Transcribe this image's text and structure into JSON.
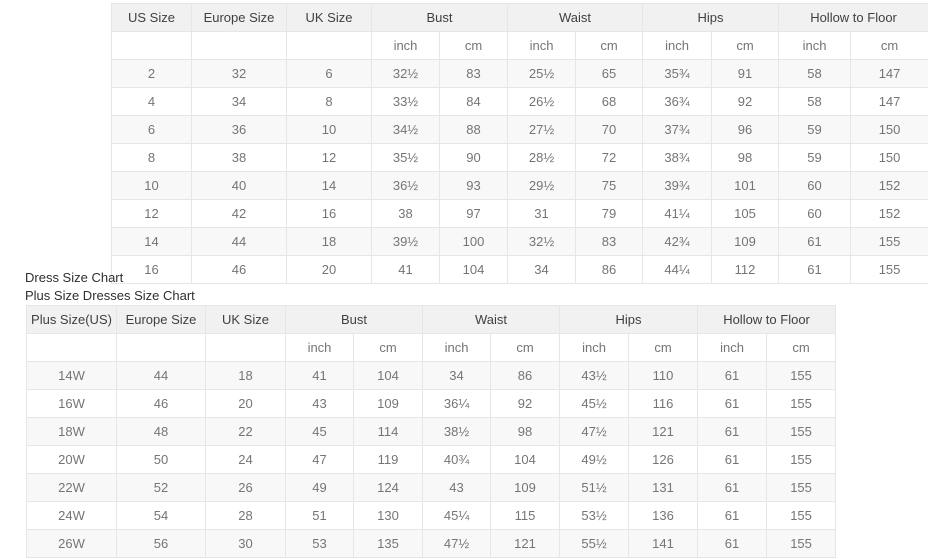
{
  "labels": {
    "dress_size_chart": "Dress Size Chart",
    "plus_size_chart": "Plus Size Dresses Size Chart"
  },
  "colors": {
    "header_bg": "#f1f1f1",
    "stripe_bg": "#f8f8f8",
    "border": "#e6e6e6",
    "header_text": "#404040",
    "cell_text": "#757575"
  },
  "standard_chart": {
    "columns": [
      {
        "label": "US Size",
        "span": 1
      },
      {
        "label": "Europe Size",
        "span": 1
      },
      {
        "label": "UK Size",
        "span": 1
      },
      {
        "label": "Bust",
        "span": 2
      },
      {
        "label": "Waist",
        "span": 2
      },
      {
        "label": "Hips",
        "span": 2
      },
      {
        "label": "Hollow to Floor",
        "span": 2
      }
    ],
    "unit_row": [
      "",
      "",
      "",
      "inch",
      "cm",
      "inch",
      "cm",
      "inch",
      "cm",
      "inch",
      "cm"
    ],
    "rows": [
      [
        "2",
        "32",
        "6",
        "32½",
        "83",
        "25½",
        "65",
        "35¾",
        "91",
        "58",
        "147"
      ],
      [
        "4",
        "34",
        "8",
        "33½",
        "84",
        "26½",
        "68",
        "36¾",
        "92",
        "58",
        "147"
      ],
      [
        "6",
        "36",
        "10",
        "34½",
        "88",
        "27½",
        "70",
        "37¾",
        "96",
        "59",
        "150"
      ],
      [
        "8",
        "38",
        "12",
        "35½",
        "90",
        "28½",
        "72",
        "38¾",
        "98",
        "59",
        "150"
      ],
      [
        "10",
        "40",
        "14",
        "36½",
        "93",
        "29½",
        "75",
        "39¾",
        "101",
        "60",
        "152"
      ],
      [
        "12",
        "42",
        "16",
        "38",
        "97",
        "31",
        "79",
        "41¼",
        "105",
        "60",
        "152"
      ],
      [
        "14",
        "44",
        "18",
        "39½",
        "100",
        "32½",
        "83",
        "42¾",
        "109",
        "61",
        "155"
      ],
      [
        "16",
        "46",
        "20",
        "41",
        "104",
        "34",
        "86",
        "44¼",
        "112",
        "61",
        "155"
      ]
    ]
  },
  "plus_chart": {
    "columns": [
      {
        "label": "Plus Size(US)",
        "span": 1
      },
      {
        "label": "Europe Size",
        "span": 1
      },
      {
        "label": "UK Size",
        "span": 1
      },
      {
        "label": "Bust",
        "span": 2
      },
      {
        "label": "Waist",
        "span": 2
      },
      {
        "label": "Hips",
        "span": 2
      },
      {
        "label": "Hollow to Floor",
        "span": 2
      }
    ],
    "unit_row": [
      "",
      "",
      "",
      "inch",
      "cm",
      "inch",
      "cm",
      "inch",
      "cm",
      "inch",
      "cm"
    ],
    "rows": [
      [
        "14W",
        "44",
        "18",
        "41",
        "104",
        "34",
        "86",
        "43½",
        "110",
        "61",
        "155"
      ],
      [
        "16W",
        "46",
        "20",
        "43",
        "109",
        "36¼",
        "92",
        "45½",
        "116",
        "61",
        "155"
      ],
      [
        "18W",
        "48",
        "22",
        "45",
        "114",
        "38½",
        "98",
        "47½",
        "121",
        "61",
        "155"
      ],
      [
        "20W",
        "50",
        "24",
        "47",
        "119",
        "40¾",
        "104",
        "49½",
        "126",
        "61",
        "155"
      ],
      [
        "22W",
        "52",
        "26",
        "49",
        "124",
        "43",
        "109",
        "51½",
        "131",
        "61",
        "155"
      ],
      [
        "24W",
        "54",
        "28",
        "51",
        "130",
        "45¼",
        "115",
        "53½",
        "136",
        "61",
        "155"
      ],
      [
        "26W",
        "56",
        "30",
        "53",
        "135",
        "47½",
        "121",
        "55½",
        "141",
        "61",
        "155"
      ]
    ]
  }
}
